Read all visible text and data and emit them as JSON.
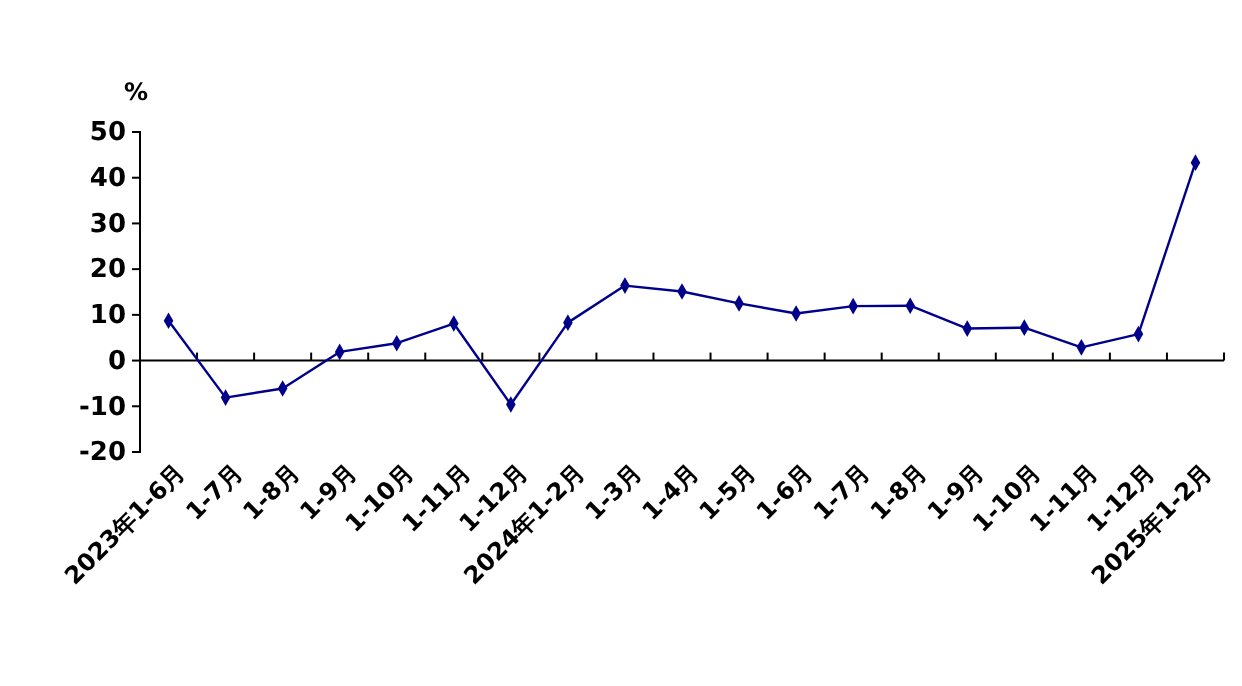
{
  "chart_data": {
    "type": "line",
    "ylabel": "%",
    "categories": [
      "2023年1-6月",
      "1-7月",
      "1-8月",
      "1-9月",
      "1-10月",
      "1-11月",
      "1-12月",
      "2024年1-2月",
      "1-3月",
      "1-4月",
      "1-5月",
      "1-6月",
      "1-7月",
      "1-8月",
      "1-9月",
      "1-10月",
      "1-11月",
      "1-12月",
      "2025年1-2月"
    ],
    "series": [
      {
        "color": "#00008b",
        "values": [
          8.7,
          -8.1,
          -6.1,
          1.9,
          3.8,
          8.1,
          -9.6,
          8.3,
          16.4,
          15.1,
          12.5,
          10.3,
          11.9,
          12.0,
          7.0,
          7.2,
          2.9,
          5.8,
          43.3
        ]
      }
    ],
    "ylim": [
      -20,
      50
    ],
    "yticks": [
      -20,
      -10,
      0,
      10,
      20,
      30,
      40,
      50
    ],
    "marker": "diamond",
    "line_style": "solid"
  }
}
